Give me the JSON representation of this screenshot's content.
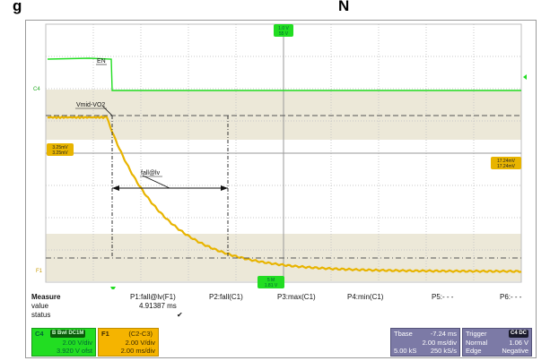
{
  "heading": {
    "left": "g",
    "mid": "N"
  },
  "waveform": {
    "ch4_label": "C4",
    "f1_label": "F1",
    "en_label": "EN",
    "vmid_label": "Vmid-VO2",
    "fall_label": "fall@lv",
    "trigger_marker_top": "1.0 V",
    "trigger_marker_top2": "55 V",
    "cursor_left_a": "3.25mV",
    "cursor_left_b": "3.25mV",
    "cursor_right_a": "17.24mV",
    "cursor_right_b": "17.24mV",
    "bottom_marker_a": "5 M",
    "bottom_marker_b": "1.81 V",
    "colors": {
      "ch4": "#22dd22",
      "f1": "#e8b400",
      "band": "#ece8d8"
    }
  },
  "measure": {
    "header_label": "Measure",
    "value_label": "value",
    "status_label": "status",
    "columns": [
      "P1:fall@lv(F1)",
      "P2:fall(C1)",
      "P3:max(C1)",
      "P4:min(C1)",
      "P5:- - -",
      "P6:- - -"
    ],
    "p1_value": "4.91387 ms",
    "p1_status": "✔"
  },
  "ch4_box": {
    "name": "C4",
    "badges": "B Bwl DC1M",
    "line1": "2.00 V/div",
    "line2": "3.920 V ofst"
  },
  "f1_box": {
    "name": "F1",
    "expr": "(C2-C3)",
    "line1": "2.00 V/div",
    "line2": "2.00 ms/div"
  },
  "tbase_box": {
    "label": "Tbase",
    "offset": "-7.24 ms",
    "line1": "2.00 ms/div",
    "line2a": "5.00 kS",
    "line2b": "250 kS/s"
  },
  "trigger_box": {
    "label": "Trigger",
    "badge": "C4 DC",
    "line1a": "Normal",
    "line1b": "1.06 V",
    "line2a": "Edge",
    "line2b": "Negative"
  }
}
